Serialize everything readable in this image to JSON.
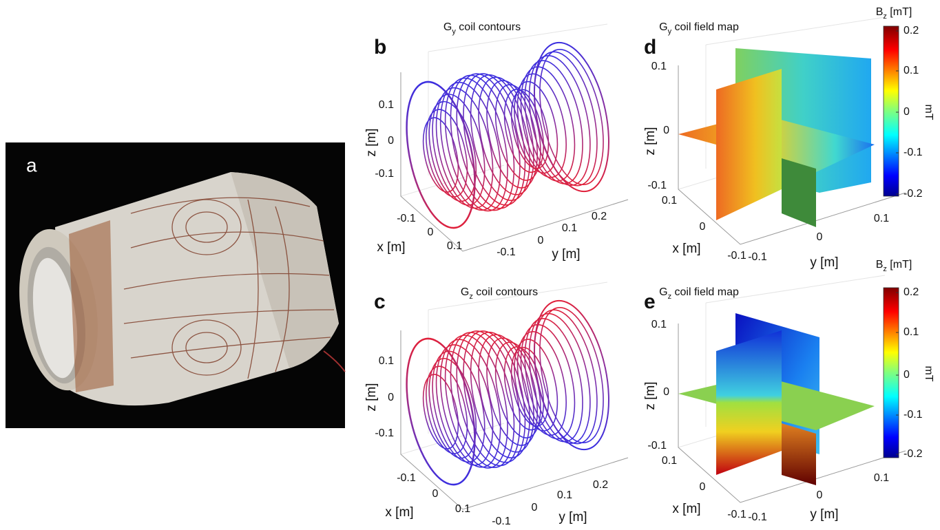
{
  "panels": [
    {
      "letter": "a"
    },
    {
      "letter": "b",
      "title": {
        "main": "G",
        "sub": "y",
        "rest": " coil contours"
      },
      "z_label": "z [m]",
      "x_label": "x [m]",
      "y_label": "y [m]",
      "z_ticks": [
        "0.1",
        "0",
        "-0.1"
      ],
      "x_ticks": [
        "-0.1",
        "0",
        "0.1"
      ],
      "y_ticks": [
        "-0.1",
        "0",
        "0.1",
        "0.2"
      ]
    },
    {
      "letter": "c",
      "title": {
        "main": "G",
        "sub": "z",
        "rest": " coil contours"
      },
      "z_label": "z [m]",
      "x_label": "x [m]",
      "y_label": "y [m]",
      "z_ticks": [
        "0.1",
        "0",
        "-0.1"
      ],
      "x_ticks": [
        "-0.1",
        "0",
        "0.1"
      ],
      "y_ticks": [
        "-0.1",
        "0",
        "0.1",
        "0.2"
      ]
    },
    {
      "letter": "d",
      "title": {
        "main": "G",
        "sub": "y",
        "rest": " coil field map"
      },
      "z_label": "z [m]",
      "x_label": "x [m]",
      "y_label": "y [m]",
      "z_ticks": [
        "0.1",
        "0",
        "-0.1"
      ],
      "x_ticks": [
        "0.1",
        "0",
        "-0.1"
      ],
      "y_ticks": [
        "-0.1",
        "0",
        "0.1"
      ],
      "colorbar": {
        "label": {
          "main": "B",
          "sub": "z",
          "rest": " [mT]"
        },
        "ticks": [
          "0.2",
          "0.1",
          "0",
          "-0.1",
          "-0.2"
        ],
        "unit": "mT"
      }
    },
    {
      "letter": "e",
      "title": {
        "main": "G",
        "sub": "z",
        "rest": " coil field map"
      },
      "z_label": "z [m]",
      "x_label": "x [m]",
      "y_label": "y [m]",
      "z_ticks": [
        "0.1",
        "0",
        "-0.1"
      ],
      "x_ticks": [
        "0.1",
        "0",
        "-0.1"
      ],
      "y_ticks": [
        "-0.1",
        "0",
        "0.1"
      ],
      "colorbar": {
        "label": {
          "main": "B",
          "sub": "z",
          "rest": " [mT]"
        },
        "ticks": [
          "0.2",
          "0.1",
          "0",
          "-0.1",
          "-0.2"
        ],
        "unit": "mT"
      }
    }
  ]
}
